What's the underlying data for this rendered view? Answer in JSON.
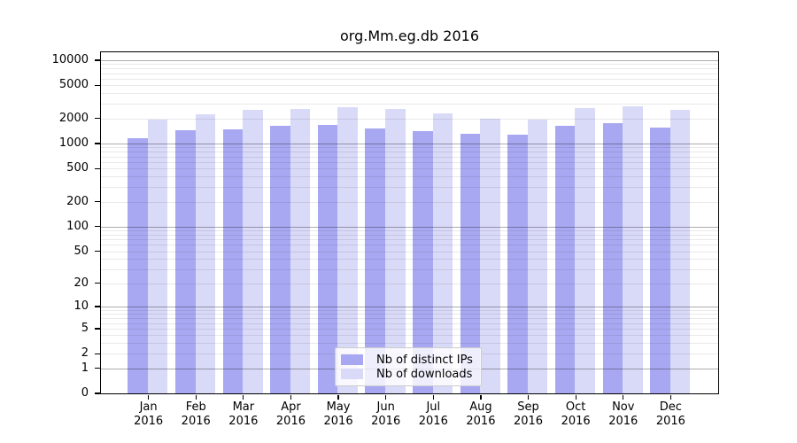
{
  "title": "org.Mm.eg.db 2016",
  "chart_data": {
    "type": "bar",
    "title": "org.Mm.eg.db 2016",
    "y_scale": "log1p",
    "categories": [
      "Jan 2016",
      "Feb 2016",
      "Mar 2016",
      "Apr 2016",
      "May 2016",
      "Jun 2016",
      "Jul 2016",
      "Aug 2016",
      "Sep 2016",
      "Oct 2016",
      "Nov 2016",
      "Dec 2016"
    ],
    "series": [
      {
        "name": "Nb of distinct IPs",
        "color": "#a8a8f2",
        "values": [
          1160,
          1430,
          1490,
          1650,
          1690,
          1510,
          1400,
          1310,
          1280,
          1620,
          1780,
          1570
        ]
      },
      {
        "name": "Nb of downloads",
        "color": "#d9d9f8",
        "values": [
          1920,
          2270,
          2530,
          2590,
          2710,
          2590,
          2310,
          2010,
          1940,
          2660,
          2770,
          2530
        ]
      }
    ],
    "y_ticks": [
      0,
      1,
      2,
      5,
      10,
      20,
      50,
      100,
      200,
      500,
      1000,
      2000,
      5000,
      10000
    ],
    "ylim": [
      0,
      12500
    ],
    "xlabel": "",
    "ylabel": "",
    "grid": true,
    "legend_position": "bottom-center",
    "colors": {
      "grid_major": "rgba(0,0,0,0.32)",
      "grid_minor": "rgba(0,0,0,0.085)",
      "spine": "#000000",
      "background": "#ffffff"
    }
  }
}
